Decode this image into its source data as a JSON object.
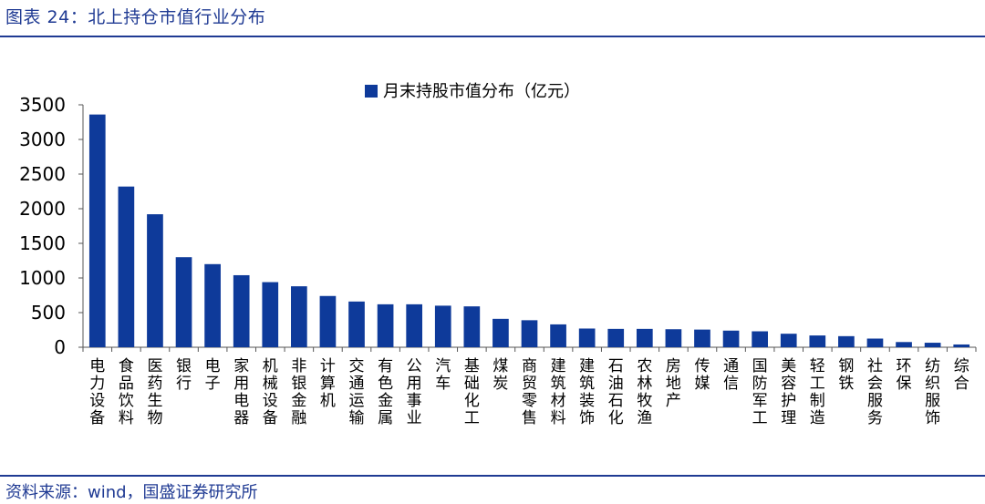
{
  "header": {
    "title": "图表 24：北上持仓市值行业分布"
  },
  "footer": {
    "source": "资料来源：wind，国盛证券研究所"
  },
  "colors": {
    "bar": "#0e3a9a",
    "brand": "#1f3a93",
    "axis": "#555555",
    "text": "#000000"
  },
  "chart_data": {
    "type": "bar",
    "title": "",
    "xlabel": "",
    "ylabel": "",
    "ylim": [
      0,
      3500
    ],
    "yticks": [
      0,
      500,
      1000,
      1500,
      2000,
      2500,
      3000,
      3500
    ],
    "legend": {
      "position": "top-center",
      "label": "月末持股市值分布（亿元）"
    },
    "categories": [
      "电力设备",
      "食品饮料",
      "医药生物",
      "银行",
      "电子",
      "家用电器",
      "机械设备",
      "非银金融",
      "计算机",
      "交通运输",
      "有色金属",
      "公用事业",
      "汽车",
      "基础化工",
      "煤炭",
      "商贸零售",
      "建筑材料",
      "建筑装饰",
      "石油石化",
      "农林牧渔",
      "房地产",
      "传媒",
      "通信",
      "国防军工",
      "美容护理",
      "轻工制造",
      "钢铁",
      "社会服务",
      "环保",
      "纺织服饰",
      "综合"
    ],
    "series": [
      {
        "name": "月末持股市值分布（亿元）",
        "values": [
          3360,
          2320,
          1920,
          1300,
          1200,
          1040,
          940,
          880,
          740,
          660,
          620,
          620,
          600,
          590,
          410,
          390,
          330,
          270,
          265,
          265,
          260,
          255,
          240,
          230,
          195,
          170,
          160,
          125,
          75,
          65,
          40
        ]
      }
    ]
  }
}
